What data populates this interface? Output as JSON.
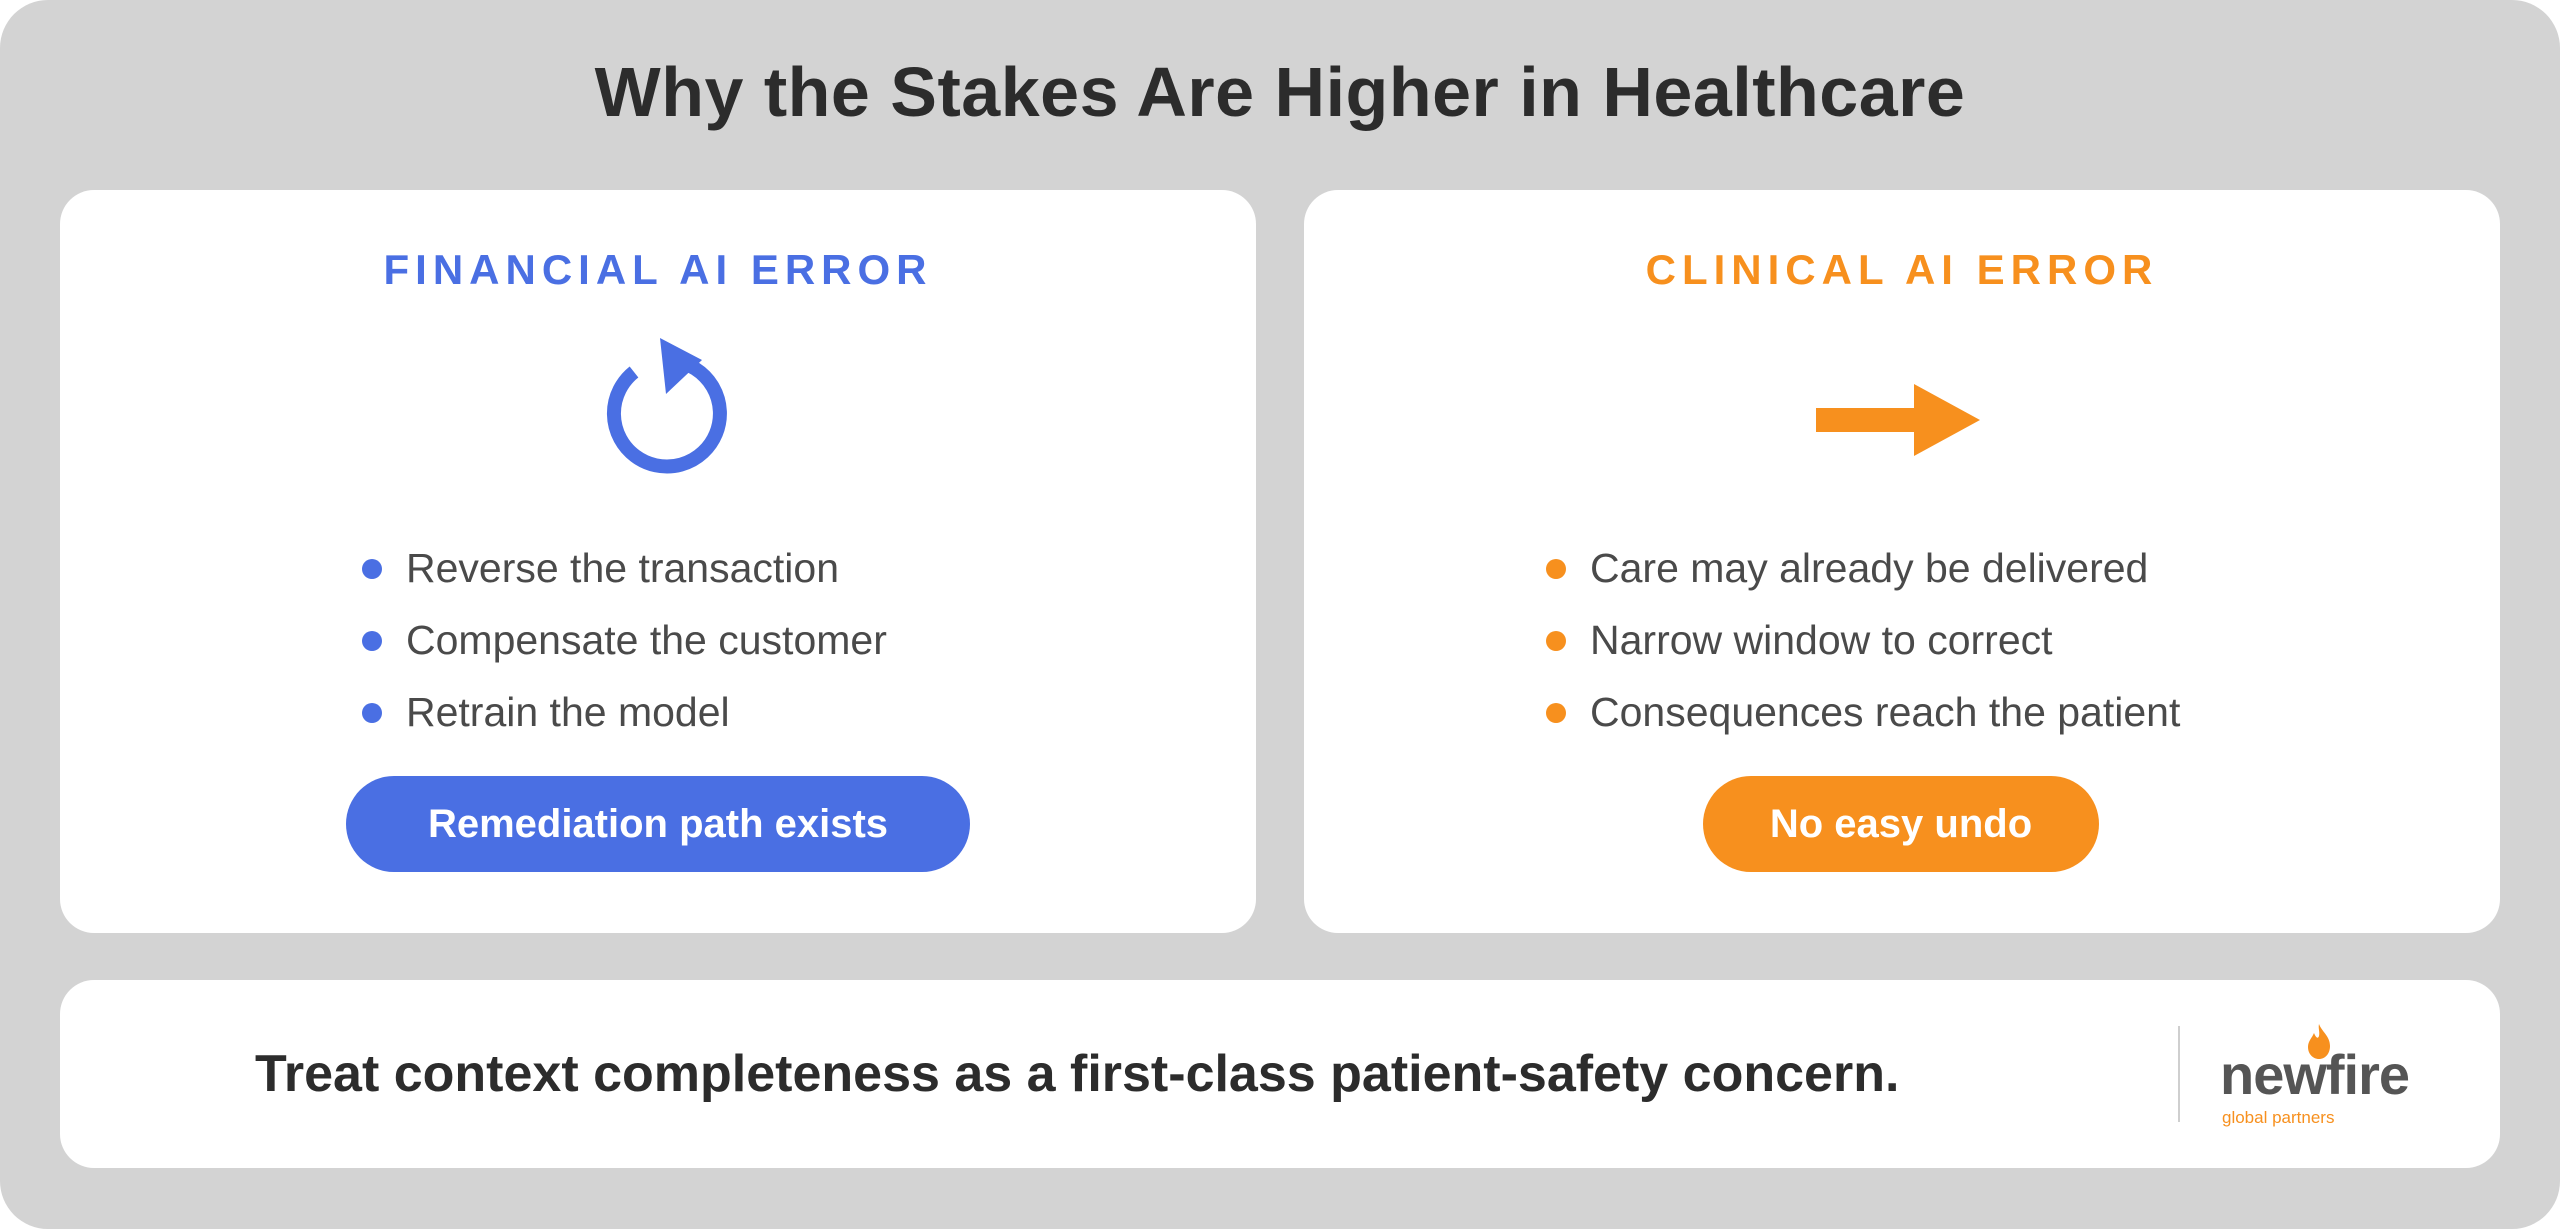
{
  "title": "Why the Stakes Are Higher in Healthcare",
  "colors": {
    "blue": "#4a6fe3",
    "orange": "#f7901e",
    "background": "#d3d3d3",
    "text": "#2c2c2c"
  },
  "financial": {
    "heading": "FINANCIAL AI ERROR",
    "icon": "circular-arrow-icon",
    "bullets": [
      "Reverse the transaction",
      "Compensate the customer",
      "Retrain the model"
    ],
    "pill": "Remediation path exists"
  },
  "clinical": {
    "heading": "CLINICAL AI ERROR",
    "icon": "right-arrow-icon",
    "bullets": [
      "Care may already be delivered",
      "Narrow window to correct",
      "Consequences reach the patient"
    ],
    "pill": "No easy undo"
  },
  "footer": {
    "text": "Treat context completeness as a first-class patient-safety concern.",
    "logo_word": "newfire",
    "logo_sub": "global partners"
  }
}
